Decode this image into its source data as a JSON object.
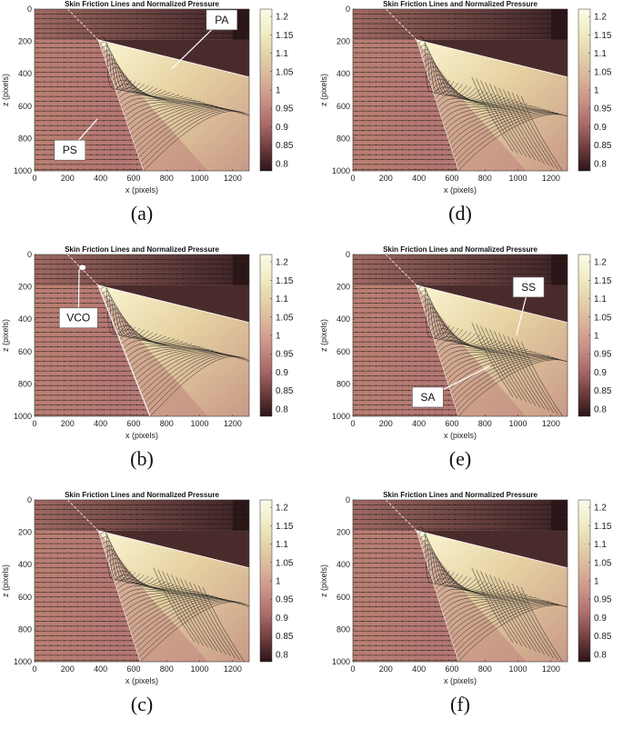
{
  "panels": [
    {
      "id": "a",
      "caption": "(a)",
      "variant": 0,
      "callouts": [
        {
          "text": "PA",
          "box": [
            1040,
            5
          ],
          "tip": [
            830,
            370
          ]
        },
        {
          "text": "PS",
          "box": [
            120,
            810
          ],
          "tip": [
            380,
            680
          ]
        }
      ]
    },
    {
      "id": "d",
      "caption": "(d)",
      "variant": 3,
      "callouts": []
    },
    {
      "id": "b",
      "caption": "(b)",
      "variant": 1,
      "callouts": [
        {
          "text": "VCO",
          "box": [
            150,
            330
          ],
          "tip": [
            270,
            90
          ]
        }
      ],
      "marker": [
        290,
        80
      ]
    },
    {
      "id": "e",
      "caption": "(e)",
      "variant": 4,
      "callouts": [
        {
          "text": "SS",
          "box": [
            970,
            140
          ],
          "tip": [
            990,
            500
          ]
        },
        {
          "text": "SA",
          "box": [
            360,
            820
          ],
          "tip": [
            830,
            690
          ]
        }
      ]
    },
    {
      "id": "c",
      "caption": "(c)",
      "variant": 2,
      "callouts": []
    },
    {
      "id": "f",
      "caption": "(f)",
      "variant": 5,
      "callouts": []
    }
  ],
  "chart_data": {
    "type": "heatmap",
    "title": "Skin Friction Lines and Normalized Pressure",
    "xlabel": "x (pixels)",
    "ylabel": "z (pixels)",
    "xlim": [
      0,
      1300
    ],
    "ylim": [
      0,
      1000
    ],
    "xticks": [
      "0",
      "200",
      "400",
      "600",
      "800",
      "1000",
      "1200"
    ],
    "yticks": [
      "0",
      "200",
      "400",
      "600",
      "800",
      "1000"
    ],
    "colorbar": {
      "min": 0.78,
      "max": 1.22,
      "ticks": [
        "0.8",
        "0.85",
        "0.9",
        "0.95",
        "1",
        "1.05",
        "1.1",
        "1.15",
        "1.2"
      ],
      "colors": [
        "#2a1517",
        "#6e3d3e",
        "#a86a68",
        "#c98f86",
        "#d9b39a",
        "#e3d2ab",
        "#f0ecc4",
        "#fbfbea"
      ]
    }
  }
}
